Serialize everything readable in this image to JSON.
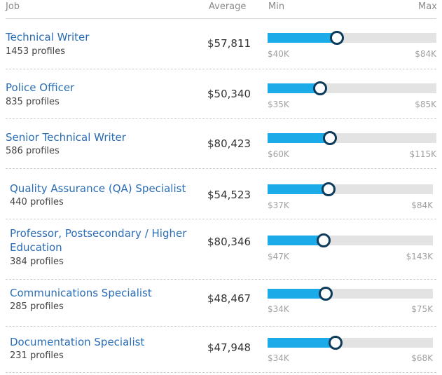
{
  "header": {
    "job": "Job",
    "average": "Average",
    "min": "Min",
    "max": "Max"
  },
  "rows": [
    {
      "title": "Technical Writer",
      "profiles": "1453 profiles",
      "average": "$57,811",
      "min": "$40K",
      "max": "$84K",
      "level": 0.41
    },
    {
      "title": "Police Officer",
      "profiles": "835 profiles",
      "average": "$50,340",
      "min": "$35K",
      "max": "$85K",
      "level": 0.31
    },
    {
      "title": "Senior Technical Writer",
      "profiles": "586 profiles",
      "average": "$80,423",
      "min": "$60K",
      "max": "$115K",
      "level": 0.37
    },
    {
      "title": "Quality Assurance (QA) Specialist",
      "profiles": "440 profiles",
      "average": "$54,523",
      "min": "$37K",
      "max": "$84K",
      "level": 0.37
    },
    {
      "title_line1": "Professor, Postsecondary / Higher",
      "title_line2": "Education",
      "profiles": "384 profiles",
      "average": "$80,346",
      "min": "$47K",
      "max": "$143K",
      "level": 0.34
    },
    {
      "title": "Communications Specialist",
      "profiles": "285 profiles",
      "average": "$48,467",
      "min": "$34K",
      "max": "$75K",
      "level": 0.35
    },
    {
      "title": "Documentation Specialist",
      "profiles": "231 profiles",
      "average": "$47,948",
      "min": "$34K",
      "max": "$68K",
      "level": 0.41
    }
  ],
  "colors": {
    "link": "#2a6db5",
    "bar_fill": "#1aabe8",
    "bar_track": "#e3e3e3",
    "knob_border": "#0d3b5c"
  }
}
